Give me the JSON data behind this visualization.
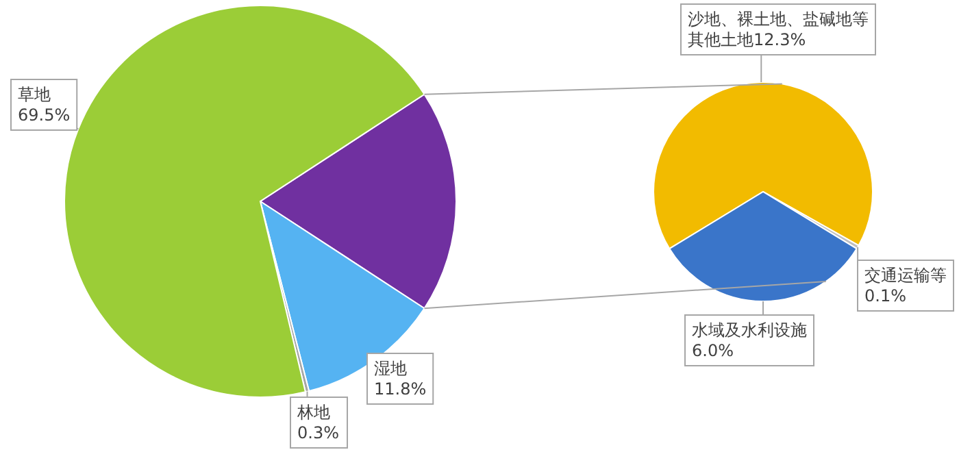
{
  "chart_data": [
    {
      "type": "pie",
      "categories": [
        null,
        "湿地",
        "林地",
        "草地"
      ],
      "values": [
        18.4,
        11.8,
        0.3,
        69.5
      ],
      "colors": [
        "#7030a0",
        "#55b3f2",
        "#a6a6a6",
        "#9bcd37"
      ],
      "value_labels": [
        null,
        "11.8%",
        "0.3%",
        "69.5%"
      ]
    },
    {
      "type": "pie",
      "categories": [
        "沙地、裸土地、盐碱地等其他土地",
        "交通运输等",
        "水域及水利设施"
      ],
      "values": [
        12.3,
        0.1,
        6.0
      ],
      "colors": [
        "#f2bb00",
        "#bfbfbf",
        "#3a75c9"
      ],
      "value_labels": [
        "12.3%",
        "0.1%",
        "6.0%"
      ]
    }
  ]
}
